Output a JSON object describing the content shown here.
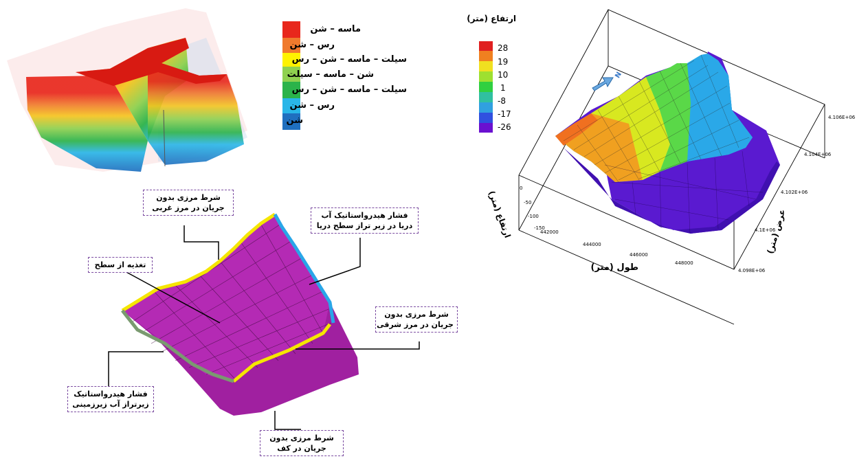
{
  "lithology_legend": {
    "items": [
      {
        "label": "ماسه – شن",
        "color": "#e8271c"
      },
      {
        "label": "رس – شن",
        "color": "#f07a2d"
      },
      {
        "label": "سیلت – ماسه – شن – رس",
        "color": "#fff200"
      },
      {
        "label": "شن – ماسه – سیلت",
        "color": "#8fd14f"
      },
      {
        "label": "سیلت – ماسه – شن – رس",
        "color": "#2bb34a"
      },
      {
        "label": "رس – شن",
        "color": "#29b6e8"
      },
      {
        "label": "شن",
        "color": "#1f6fbf"
      }
    ]
  },
  "elevation_legend": {
    "title": "ارتفاع (متر)",
    "ticks": [
      "28",
      "19",
      "10",
      "1",
      "-8",
      "-17",
      "-26"
    ],
    "colors": [
      "#e02020",
      "#f08020",
      "#f0e020",
      "#9ee030",
      "#30d040",
      "#30c0a0",
      "#30a0e0",
      "#3050e0",
      "#6a10d0"
    ]
  },
  "surface_plot": {
    "north_label": "N",
    "x_label": "طول (متر)",
    "y_label": "عرض (متر)",
    "z_label": "ارتفاع (متر)",
    "x_ticks": [
      "442000",
      "444000",
      "446000",
      "448000"
    ],
    "y_ticks": [
      "4.098E+06",
      "4.1E+06",
      "4.102E+06",
      "4.104E+06",
      "4.106E+06"
    ],
    "z_ticks": [
      "0",
      "-50",
      "-100",
      "-150"
    ]
  },
  "boundary_labels": {
    "west": [
      "شرط مرزی بدون",
      "جریان در مرز غربی"
    ],
    "sea": [
      "فشار هیدرواستاتیک آب",
      "دریا در زیر تراز سطح دریا"
    ],
    "recharge": [
      "تغذیه از سطح"
    ],
    "east": [
      "شرط مرزی بدون",
      "جریان در مرز شرقی"
    ],
    "groundwater": [
      "فشار هیدرواستاتیک",
      "زیرتراز آب زیرزمینی"
    ],
    "bottom": [
      "شرط مرزی بدون",
      "جریان در کف"
    ]
  }
}
